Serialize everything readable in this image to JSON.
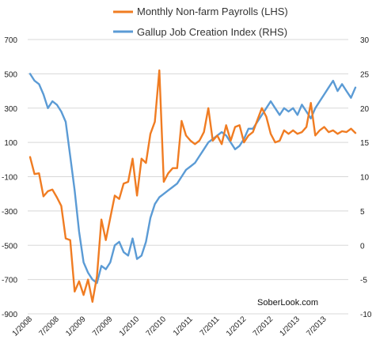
{
  "chart_data": {
    "type": "line",
    "title": "",
    "grid": "horizontal",
    "legend": {
      "placement": "top-center"
    },
    "annotation": "SoberLook.com",
    "x_start": "2008-01",
    "x_tick_labels": [
      "1/2008",
      "7/2008",
      "1/2009",
      "7/2009",
      "1/2010",
      "7/2010",
      "1/2011",
      "7/2011",
      "1/2012",
      "7/2012",
      "1/2013",
      "7/2013"
    ],
    "y_left": {
      "range": [
        -900,
        700
      ],
      "ticks": [
        "700",
        "500",
        "300",
        "100",
        "-100",
        "-300",
        "-500",
        "-700",
        "-900"
      ]
    },
    "y_right": {
      "range": [
        -10,
        30
      ],
      "ticks": [
        "30",
        "25",
        "20",
        "15",
        "10",
        "5",
        "0",
        "-5",
        "-10"
      ]
    },
    "series": [
      {
        "name": "Monthly Non-farm Payrolls (LHS)",
        "axis": "left",
        "color": "#f07c22",
        "values": [
          15,
          -85,
          -80,
          -215,
          -185,
          -175,
          -220,
          -270,
          -460,
          -470,
          -770,
          -710,
          -790,
          -700,
          -830,
          -680,
          -350,
          -470,
          -340,
          -210,
          -230,
          -140,
          -130,
          5,
          -210,
          5,
          -20,
          150,
          220,
          520,
          -130,
          -80,
          -50,
          -50,
          225,
          140,
          110,
          90,
          110,
          160,
          300,
          110,
          140,
          90,
          200,
          110,
          190,
          200,
          100,
          140,
          160,
          230,
          300,
          250,
          150,
          100,
          110,
          170,
          150,
          170,
          150,
          160,
          190,
          330,
          140,
          170,
          190,
          160,
          170,
          150,
          165,
          160,
          180,
          155
        ]
      },
      {
        "name": "Gallup Job Creation Index (RHS)",
        "axis": "right",
        "color": "#5b9bd5",
        "values": [
          25,
          24,
          23.5,
          22,
          20,
          21,
          20.5,
          19.5,
          18,
          13,
          8,
          2,
          -2.5,
          -4,
          -5,
          -5.5,
          -3,
          -3.5,
          -2.5,
          0,
          0.5,
          -1,
          -1.5,
          1,
          -2,
          -1.5,
          0.5,
          4,
          6,
          7,
          7.5,
          8,
          8.5,
          9,
          10,
          11,
          11.5,
          12,
          13,
          14,
          15,
          15.5,
          16,
          16.5,
          16,
          15,
          14,
          14.5,
          15.5,
          17,
          17,
          18,
          19,
          20,
          21,
          20,
          19,
          20,
          19.5,
          20,
          19,
          20.5,
          19.5,
          18.5,
          20,
          21,
          22,
          23,
          24,
          22.5,
          23.5,
          22.5,
          21.5,
          23
        ]
      }
    ]
  }
}
